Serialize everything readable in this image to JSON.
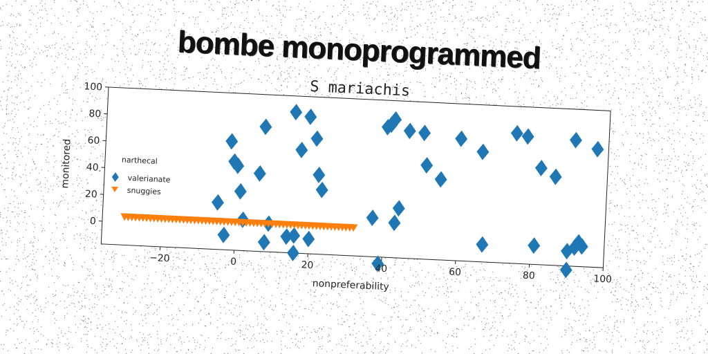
{
  "banner": {
    "text": "bombe monoprogrammed"
  },
  "colors": {
    "series_a": "#1f77b4",
    "series_b": "#ff7f0e",
    "ink": "#222222"
  },
  "chart_data": {
    "type": "scatter",
    "title": "S mariachis",
    "xlabel": "nonpreferability",
    "ylabel": "monitored",
    "xlim": [
      -36,
      100
    ],
    "ylim": [
      -17,
      100
    ],
    "xticks": [
      -20,
      0,
      20,
      40,
      60,
      80,
      100
    ],
    "yticks": [
      0,
      20,
      40,
      60,
      80,
      100
    ],
    "grid": false,
    "legend": {
      "title": "narthecal",
      "position": "center-left"
    },
    "series": [
      {
        "name": "valerianate",
        "marker": "diamond",
        "color": "#1f77b4",
        "points": [
          [
            -5,
            18
          ],
          [
            -3,
            -6
          ],
          [
            -2,
            64
          ],
          [
            -1,
            49
          ],
          [
            0,
            46
          ],
          [
            1,
            27
          ],
          [
            2,
            6
          ],
          [
            6,
            41
          ],
          [
            7,
            76
          ],
          [
            8,
            -10
          ],
          [
            9,
            4
          ],
          [
            14,
            -5
          ],
          [
            15,
            88
          ],
          [
            16,
            -4
          ],
          [
            16,
            -17
          ],
          [
            17,
            60
          ],
          [
            19,
            85
          ],
          [
            20,
            -6
          ],
          [
            21,
            69
          ],
          [
            22,
            42
          ],
          [
            23,
            31
          ],
          [
            37,
            12
          ],
          [
            39,
            -22
          ],
          [
            40,
            80
          ],
          [
            41,
            82
          ],
          [
            42,
            86
          ],
          [
            43,
            9
          ],
          [
            44,
            20
          ],
          [
            46,
            78
          ],
          [
            50,
            77
          ],
          [
            51,
            53
          ],
          [
            55,
            43
          ],
          [
            60,
            74
          ],
          [
            66,
            65
          ],
          [
            67,
            -4
          ],
          [
            75,
            80
          ],
          [
            78,
            78
          ],
          [
            81,
            -3
          ],
          [
            82,
            55
          ],
          [
            86,
            49
          ],
          [
            90,
            -6
          ],
          [
            90,
            -20
          ],
          [
            91,
            77
          ],
          [
            92,
            -3
          ],
          [
            93,
            1
          ],
          [
            94,
            -2
          ],
          [
            97,
            71
          ]
        ]
      },
      {
        "name": "snuggies",
        "marker": "triangle-down",
        "color": "#ff7f0e",
        "x_from": -30,
        "x_to": 32,
        "x_step": 1,
        "y": 4
      }
    ]
  }
}
